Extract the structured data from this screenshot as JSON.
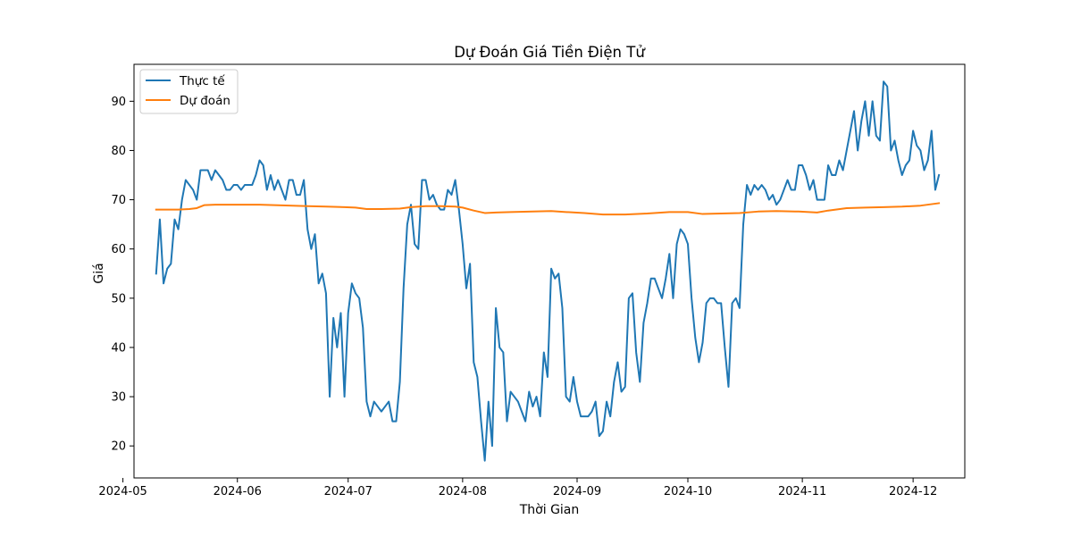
{
  "chart_data": {
    "type": "line",
    "title": "Dự Đoán Giá Tiền Điện Tử",
    "xlabel": "Thời Gian",
    "ylabel": "Giá",
    "x_axis_type": "date",
    "xlim": [
      "2024-05-04",
      "2024-12-15"
    ],
    "ylim": [
      13.5,
      97.5
    ],
    "x_ticks": [
      "2024-05",
      "2024-06",
      "2024-07",
      "2024-08",
      "2024-09",
      "2024-10",
      "2024-11",
      "2024-12"
    ],
    "y_ticks": [
      20,
      30,
      40,
      50,
      60,
      70,
      80,
      90
    ],
    "grid": false,
    "legend": {
      "location": "upper-left"
    },
    "series": [
      {
        "name": "Thực tế",
        "color": "#1f77b4",
        "points": [
          [
            "2024-05-10",
            55
          ],
          [
            "2024-05-11",
            66
          ],
          [
            "2024-05-12",
            53
          ],
          [
            "2024-05-13",
            56
          ],
          [
            "2024-05-14",
            57
          ],
          [
            "2024-05-15",
            66
          ],
          [
            "2024-05-16",
            64
          ],
          [
            "2024-05-17",
            70
          ],
          [
            "2024-05-18",
            74
          ],
          [
            "2024-05-19",
            73
          ],
          [
            "2024-05-20",
            72
          ],
          [
            "2024-05-21",
            70
          ],
          [
            "2024-05-22",
            76
          ],
          [
            "2024-05-23",
            76
          ],
          [
            "2024-05-24",
            76
          ],
          [
            "2024-05-25",
            74
          ],
          [
            "2024-05-26",
            76
          ],
          [
            "2024-05-27",
            75
          ],
          [
            "2024-05-28",
            74
          ],
          [
            "2024-05-29",
            72
          ],
          [
            "2024-05-30",
            72
          ],
          [
            "2024-05-31",
            73
          ],
          [
            "2024-06-01",
            73
          ],
          [
            "2024-06-02",
            72
          ],
          [
            "2024-06-03",
            73
          ],
          [
            "2024-06-04",
            73
          ],
          [
            "2024-06-05",
            73
          ],
          [
            "2024-06-06",
            75
          ],
          [
            "2024-06-07",
            78
          ],
          [
            "2024-06-08",
            77
          ],
          [
            "2024-06-09",
            72
          ],
          [
            "2024-06-10",
            75
          ],
          [
            "2024-06-11",
            72
          ],
          [
            "2024-06-12",
            74
          ],
          [
            "2024-06-13",
            72
          ],
          [
            "2024-06-14",
            70
          ],
          [
            "2024-06-15",
            74
          ],
          [
            "2024-06-16",
            74
          ],
          [
            "2024-06-17",
            71
          ],
          [
            "2024-06-18",
            71
          ],
          [
            "2024-06-19",
            74
          ],
          [
            "2024-06-20",
            64
          ],
          [
            "2024-06-21",
            60
          ],
          [
            "2024-06-22",
            63
          ],
          [
            "2024-06-23",
            53
          ],
          [
            "2024-06-24",
            55
          ],
          [
            "2024-06-25",
            51
          ],
          [
            "2024-06-26",
            30
          ],
          [
            "2024-06-27",
            46
          ],
          [
            "2024-06-28",
            40
          ],
          [
            "2024-06-29",
            47
          ],
          [
            "2024-06-30",
            30
          ],
          [
            "2024-07-01",
            47
          ],
          [
            "2024-07-02",
            53
          ],
          [
            "2024-07-03",
            51
          ],
          [
            "2024-07-04",
            50
          ],
          [
            "2024-07-05",
            44
          ],
          [
            "2024-07-06",
            29
          ],
          [
            "2024-07-07",
            26
          ],
          [
            "2024-07-08",
            29
          ],
          [
            "2024-07-09",
            28
          ],
          [
            "2024-07-10",
            27
          ],
          [
            "2024-07-11",
            28
          ],
          [
            "2024-07-12",
            29
          ],
          [
            "2024-07-13",
            25
          ],
          [
            "2024-07-14",
            25
          ],
          [
            "2024-07-15",
            33
          ],
          [
            "2024-07-16",
            52
          ],
          [
            "2024-07-17",
            65
          ],
          [
            "2024-07-18",
            69
          ],
          [
            "2024-07-19",
            61
          ],
          [
            "2024-07-20",
            60
          ],
          [
            "2024-07-21",
            74
          ],
          [
            "2024-07-22",
            74
          ],
          [
            "2024-07-23",
            70
          ],
          [
            "2024-07-24",
            71
          ],
          [
            "2024-07-25",
            69
          ],
          [
            "2024-07-26",
            68
          ],
          [
            "2024-07-27",
            68
          ],
          [
            "2024-07-28",
            72
          ],
          [
            "2024-07-29",
            71
          ],
          [
            "2024-07-30",
            74
          ],
          [
            "2024-07-31",
            68
          ],
          [
            "2024-08-01",
            61
          ],
          [
            "2024-08-02",
            52
          ],
          [
            "2024-08-03",
            57
          ],
          [
            "2024-08-04",
            37
          ],
          [
            "2024-08-05",
            34
          ],
          [
            "2024-08-06",
            25
          ],
          [
            "2024-08-07",
            17
          ],
          [
            "2024-08-08",
            29
          ],
          [
            "2024-08-09",
            20
          ],
          [
            "2024-08-10",
            48
          ],
          [
            "2024-08-11",
            40
          ],
          [
            "2024-08-12",
            39
          ],
          [
            "2024-08-13",
            25
          ],
          [
            "2024-08-14",
            31
          ],
          [
            "2024-08-15",
            30
          ],
          [
            "2024-08-16",
            29
          ],
          [
            "2024-08-17",
            27
          ],
          [
            "2024-08-18",
            25
          ],
          [
            "2024-08-19",
            31
          ],
          [
            "2024-08-20",
            28
          ],
          [
            "2024-08-21",
            30
          ],
          [
            "2024-08-22",
            26
          ],
          [
            "2024-08-23",
            39
          ],
          [
            "2024-08-24",
            34
          ],
          [
            "2024-08-25",
            56
          ],
          [
            "2024-08-26",
            54
          ],
          [
            "2024-08-27",
            55
          ],
          [
            "2024-08-28",
            48
          ],
          [
            "2024-08-29",
            30
          ],
          [
            "2024-08-30",
            29
          ],
          [
            "2024-08-31",
            34
          ],
          [
            "2024-09-01",
            29
          ],
          [
            "2024-09-02",
            26
          ],
          [
            "2024-09-03",
            26
          ],
          [
            "2024-09-04",
            26
          ],
          [
            "2024-09-05",
            27
          ],
          [
            "2024-09-06",
            29
          ],
          [
            "2024-09-07",
            22
          ],
          [
            "2024-09-08",
            23
          ],
          [
            "2024-09-09",
            29
          ],
          [
            "2024-09-10",
            26
          ],
          [
            "2024-09-11",
            33
          ],
          [
            "2024-09-12",
            37
          ],
          [
            "2024-09-13",
            31
          ],
          [
            "2024-09-14",
            32
          ],
          [
            "2024-09-15",
            50
          ],
          [
            "2024-09-16",
            51
          ],
          [
            "2024-09-17",
            39
          ],
          [
            "2024-09-18",
            33
          ],
          [
            "2024-09-19",
            45
          ],
          [
            "2024-09-20",
            49
          ],
          [
            "2024-09-21",
            54
          ],
          [
            "2024-09-22",
            54
          ],
          [
            "2024-09-23",
            52
          ],
          [
            "2024-09-24",
            50
          ],
          [
            "2024-09-25",
            54
          ],
          [
            "2024-09-26",
            59
          ],
          [
            "2024-09-27",
            50
          ],
          [
            "2024-09-28",
            61
          ],
          [
            "2024-09-29",
            64
          ],
          [
            "2024-09-30",
            63
          ],
          [
            "2024-10-01",
            61
          ],
          [
            "2024-10-02",
            50
          ],
          [
            "2024-10-03",
            42
          ],
          [
            "2024-10-04",
            37
          ],
          [
            "2024-10-05",
            41
          ],
          [
            "2024-10-06",
            49
          ],
          [
            "2024-10-07",
            50
          ],
          [
            "2024-10-08",
            50
          ],
          [
            "2024-10-09",
            49
          ],
          [
            "2024-10-10",
            49
          ],
          [
            "2024-10-11",
            40
          ],
          [
            "2024-10-12",
            32
          ],
          [
            "2024-10-13",
            49
          ],
          [
            "2024-10-14",
            50
          ],
          [
            "2024-10-15",
            48
          ],
          [
            "2024-10-16",
            65
          ],
          [
            "2024-10-17",
            73
          ],
          [
            "2024-10-18",
            71
          ],
          [
            "2024-10-19",
            73
          ],
          [
            "2024-10-20",
            72
          ],
          [
            "2024-10-21",
            73
          ],
          [
            "2024-10-22",
            72
          ],
          [
            "2024-10-23",
            70
          ],
          [
            "2024-10-24",
            71
          ],
          [
            "2024-10-25",
            69
          ],
          [
            "2024-10-26",
            70
          ],
          [
            "2024-10-27",
            72
          ],
          [
            "2024-10-28",
            74
          ],
          [
            "2024-10-29",
            72
          ],
          [
            "2024-10-30",
            72
          ],
          [
            "2024-10-31",
            77
          ],
          [
            "2024-11-01",
            77
          ],
          [
            "2024-11-02",
            75
          ],
          [
            "2024-11-03",
            72
          ],
          [
            "2024-11-04",
            74
          ],
          [
            "2024-11-05",
            70
          ],
          [
            "2024-11-06",
            70
          ],
          [
            "2024-11-07",
            70
          ],
          [
            "2024-11-08",
            77
          ],
          [
            "2024-11-09",
            75
          ],
          [
            "2024-11-10",
            75
          ],
          [
            "2024-11-11",
            78
          ],
          [
            "2024-11-12",
            76
          ],
          [
            "2024-11-13",
            80
          ],
          [
            "2024-11-14",
            84
          ],
          [
            "2024-11-15",
            88
          ],
          [
            "2024-11-16",
            80
          ],
          [
            "2024-11-17",
            86
          ],
          [
            "2024-11-18",
            90
          ],
          [
            "2024-11-19",
            83
          ],
          [
            "2024-11-20",
            90
          ],
          [
            "2024-11-21",
            83
          ],
          [
            "2024-11-22",
            82
          ],
          [
            "2024-11-23",
            94
          ],
          [
            "2024-11-24",
            93
          ],
          [
            "2024-11-25",
            80
          ],
          [
            "2024-11-26",
            82
          ],
          [
            "2024-11-27",
            78
          ],
          [
            "2024-11-28",
            75
          ],
          [
            "2024-11-29",
            77
          ],
          [
            "2024-11-30",
            78
          ],
          [
            "2024-12-01",
            84
          ],
          [
            "2024-12-02",
            81
          ],
          [
            "2024-12-03",
            80
          ],
          [
            "2024-12-04",
            76
          ],
          [
            "2024-12-05",
            78
          ],
          [
            "2024-12-06",
            84
          ],
          [
            "2024-12-07",
            72
          ],
          [
            "2024-12-08",
            75
          ]
        ]
      },
      {
        "name": "Dự đoán",
        "color": "#ff7f0e",
        "points": [
          [
            "2024-05-10",
            68.0
          ],
          [
            "2024-05-13",
            68.0
          ],
          [
            "2024-05-16",
            68.0
          ],
          [
            "2024-05-19",
            68.1
          ],
          [
            "2024-05-21",
            68.3
          ],
          [
            "2024-05-23",
            68.9
          ],
          [
            "2024-05-26",
            69.0
          ],
          [
            "2024-05-30",
            69.0
          ],
          [
            "2024-06-02",
            69.0
          ],
          [
            "2024-06-07",
            69.0
          ],
          [
            "2024-06-11",
            68.9
          ],
          [
            "2024-06-16",
            68.8
          ],
          [
            "2024-06-20",
            68.7
          ],
          [
            "2024-06-25",
            68.6
          ],
          [
            "2024-06-30",
            68.5
          ],
          [
            "2024-07-03",
            68.4
          ],
          [
            "2024-07-06",
            68.1
          ],
          [
            "2024-07-10",
            68.1
          ],
          [
            "2024-07-15",
            68.2
          ],
          [
            "2024-07-18",
            68.5
          ],
          [
            "2024-07-22",
            68.7
          ],
          [
            "2024-07-26",
            68.7
          ],
          [
            "2024-07-30",
            68.6
          ],
          [
            "2024-08-01",
            68.4
          ],
          [
            "2024-08-04",
            67.8
          ],
          [
            "2024-08-07",
            67.3
          ],
          [
            "2024-08-10",
            67.4
          ],
          [
            "2024-08-14",
            67.5
          ],
          [
            "2024-08-20",
            67.6
          ],
          [
            "2024-08-25",
            67.7
          ],
          [
            "2024-08-29",
            67.5
          ],
          [
            "2024-09-03",
            67.3
          ],
          [
            "2024-09-08",
            67.0
          ],
          [
            "2024-09-14",
            67.0
          ],
          [
            "2024-09-20",
            67.2
          ],
          [
            "2024-09-26",
            67.5
          ],
          [
            "2024-10-01",
            67.5
          ],
          [
            "2024-10-05",
            67.1
          ],
          [
            "2024-10-10",
            67.2
          ],
          [
            "2024-10-15",
            67.3
          ],
          [
            "2024-10-20",
            67.6
          ],
          [
            "2024-10-25",
            67.7
          ],
          [
            "2024-10-31",
            67.6
          ],
          [
            "2024-11-05",
            67.4
          ],
          [
            "2024-11-08",
            67.8
          ],
          [
            "2024-11-13",
            68.3
          ],
          [
            "2024-11-18",
            68.4
          ],
          [
            "2024-11-23",
            68.5
          ],
          [
            "2024-11-28",
            68.6
          ],
          [
            "2024-12-03",
            68.8
          ],
          [
            "2024-12-08",
            69.3
          ]
        ]
      }
    ]
  }
}
